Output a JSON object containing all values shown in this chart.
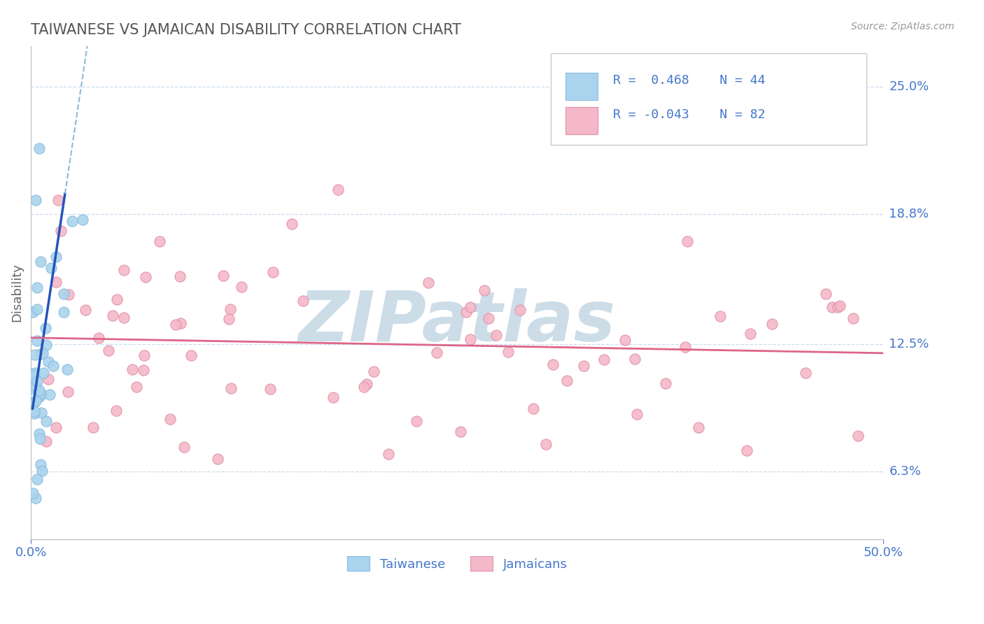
{
  "title": "TAIWANESE VS JAMAICAN DISABILITY CORRELATION CHART",
  "source": "Source: ZipAtlas.com",
  "ylabel": "Disability",
  "yticks": [
    0.063,
    0.125,
    0.188,
    0.25
  ],
  "ytick_labels": [
    "6.3%",
    "12.5%",
    "18.8%",
    "25.0%"
  ],
  "xlim": [
    0.0,
    0.5
  ],
  "ylim": [
    0.03,
    0.27
  ],
  "taiwanese_R": 0.468,
  "taiwanese_N": 44,
  "jamaican_R": -0.043,
  "jamaican_N": 82,
  "taiwanese_color": "#aad4ee",
  "taiwanese_edge": "#88bbdd",
  "jamaican_color": "#f5b8c8",
  "jamaican_edge": "#e090a8",
  "trend_taiwanese_color": "#2255bb",
  "trend_jamaican_color": "#dd6688",
  "watermark": "ZIPatlas",
  "watermark_color": "#ccdde8",
  "background_color": "#ffffff",
  "text_color": "#4477cc",
  "title_color": "#555555",
  "grid_color": "#ccddee",
  "spine_color": "#bbbbbb"
}
